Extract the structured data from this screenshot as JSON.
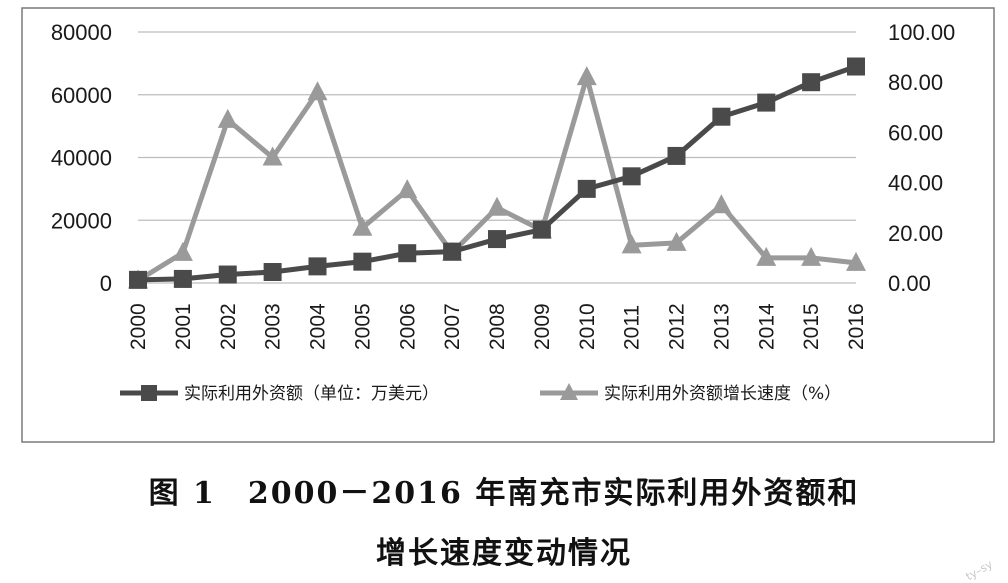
{
  "chart_data": {
    "type": "line",
    "categories": [
      "2000",
      "2001",
      "2002",
      "2003",
      "2004",
      "2005",
      "2006",
      "2007",
      "2008",
      "2009",
      "2010",
      "2011",
      "2012",
      "2013",
      "2014",
      "2015",
      "2016"
    ],
    "series": [
      {
        "name": "实际利用外资额（单位：万美元）",
        "axis": "left",
        "color": "#4a4a4a",
        "marker": "square",
        "values": [
          1000,
          1300,
          2700,
          3500,
          5300,
          6800,
          9500,
          10000,
          14000,
          17000,
          30000,
          34000,
          40500,
          53000,
          57500,
          64000,
          69000
        ]
      },
      {
        "name": "实际利用外资额增长速度（%）",
        "axis": "right",
        "color": "#9a9a9a",
        "marker": "triangle",
        "values": [
          1,
          12,
          65,
          50,
          76,
          22,
          37,
          12,
          30,
          21,
          82,
          15,
          16,
          31,
          10,
          10,
          8
        ]
      }
    ],
    "y_left": {
      "ticks": [
        "80000",
        "60000",
        "40000",
        "20000",
        "0"
      ],
      "ylim": [
        0,
        80000
      ]
    },
    "y_right": {
      "ticks": [
        "100.00",
        "80.00",
        "60.00",
        "40.00",
        "20.00",
        "0.00"
      ],
      "ylim": [
        0,
        100
      ]
    },
    "grid": true,
    "legend_position": "bottom"
  },
  "caption": {
    "line1": "图 1　2000－2016 年南充市实际利用外资额和",
    "line2": "增长速度变动情况"
  },
  "watermark": "ty–sy"
}
